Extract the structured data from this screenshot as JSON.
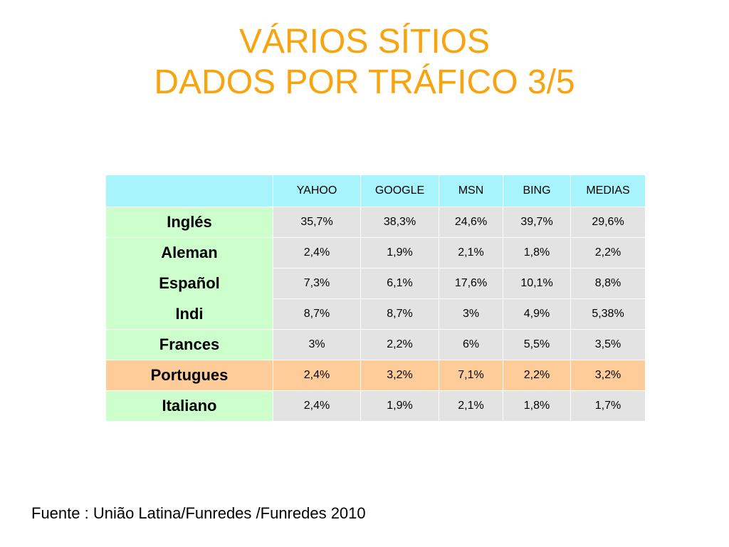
{
  "title": {
    "line1": "VÁRIOS SÍTIOS",
    "line2": "DADOS POR TRÁFICO 3/5"
  },
  "table": {
    "columns": [
      "",
      "YAHOO",
      "GOOGLE",
      "MSN",
      "BING",
      "MEDIAS"
    ],
    "rows": [
      {
        "lang": "Inglés",
        "values": [
          "35,7%",
          "38,3%",
          "24,6%",
          "39,7%",
          "29,6%"
        ]
      },
      {
        "lang": "Aleman",
        "values": [
          "2,4%",
          "1,9%",
          "2,1%",
          "1,8%",
          "2,2%"
        ]
      },
      {
        "lang": "Español",
        "values": [
          "7,3%",
          "6,1%",
          "17,6%",
          "10,1%",
          "8,8%"
        ]
      },
      {
        "lang": "Indi",
        "values": [
          "8,7%",
          "8,7%",
          "3%",
          "4,9%",
          "5,38%"
        ]
      },
      {
        "lang": "Frances",
        "values": [
          "3%",
          "2,2%",
          "6%",
          "5,5%",
          "3,5%"
        ]
      },
      {
        "lang": "Portugues",
        "values": [
          "2,4%",
          "3,2%",
          "7,1%",
          "2,2%",
          "3,2%"
        ]
      },
      {
        "lang": "Italiano",
        "values": [
          "2,4%",
          "1,9%",
          "2,1%",
          "1,8%",
          "1,7%"
        ]
      }
    ]
  },
  "source": "Fuente : União Latina/Funredes /Funredes 2010",
  "colors": {
    "title": "#f7a40f",
    "header_bg": "#a8f4fc",
    "lang_bg": "#ccffcc",
    "value_bg": "#e3e3e3",
    "highlight_bg": "#fecc99"
  }
}
